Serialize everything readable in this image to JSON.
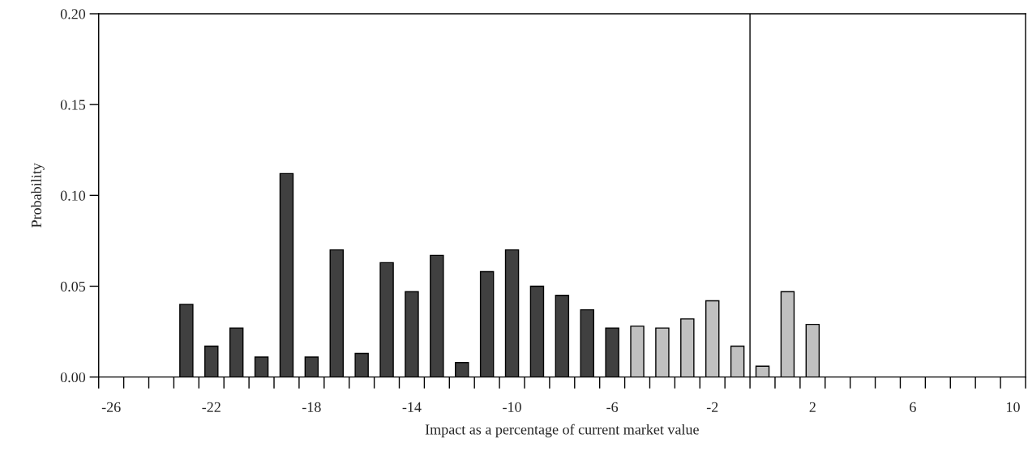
{
  "chart_data": {
    "type": "bar",
    "xlabel": "Impact as a percentage of current market value",
    "ylabel": "Probability",
    "x": [
      -26,
      -25,
      -24,
      -23,
      -22,
      -21,
      -20,
      -19,
      -18,
      -17,
      -16,
      -15,
      -14,
      -13,
      -12,
      -11,
      -10,
      -9,
      -8,
      -7,
      -6,
      -5,
      -4,
      -3,
      -2,
      -1,
      0,
      1,
      2,
      3,
      4,
      5,
      6,
      7,
      8,
      9,
      10
    ],
    "values": [
      0,
      0,
      0,
      0.04,
      0.017,
      0.027,
      0.011,
      0.112,
      0.011,
      0.07,
      0.013,
      0.063,
      0.047,
      0.067,
      0.008,
      0.058,
      0.07,
      0.05,
      0.045,
      0.037,
      0.027,
      0.028,
      0.027,
      0.032,
      0.042,
      0.017,
      0.006,
      0.047,
      0.029,
      0,
      0,
      0,
      0,
      0,
      0,
      0,
      0
    ],
    "colors": [
      "#000000",
      "#000000",
      "#000000",
      "#404040",
      "#404040",
      "#404040",
      "#404040",
      "#404040",
      "#404040",
      "#404040",
      "#404040",
      "#404040",
      "#404040",
      "#404040",
      "#404040",
      "#404040",
      "#404040",
      "#404040",
      "#404040",
      "#404040",
      "#404040",
      "#c0c0c0",
      "#c0c0c0",
      "#c0c0c0",
      "#c0c0c0",
      "#c0c0c0",
      "#c0c0c0",
      "#c0c0c0",
      "#c0c0c0",
      "#000000",
      "#000000",
      "#000000",
      "#000000",
      "#000000",
      "#000000",
      "#000000",
      "#000000"
    ],
    "xlim": [
      -26.5,
      10.5
    ],
    "xticks": [
      -26,
      -22,
      -18,
      -14,
      -10,
      -6,
      -2,
      2,
      6,
      10,
      {
        "value": -26.5,
        "label": null
      },
      {
        "value": -25.5,
        "label": null
      },
      {
        "value": -24.5,
        "label": null
      },
      {
        "value": -23.5,
        "label": null
      },
      {
        "value": -22.5,
        "label": null
      },
      {
        "value": -21.5,
        "label": null
      },
      {
        "value": -20.5,
        "label": null
      },
      {
        "value": -19.5,
        "label": null
      },
      {
        "value": -18.5,
        "label": null
      },
      {
        "value": -17.5,
        "label": null
      },
      {
        "value": -16.5,
        "label": null
      },
      {
        "value": -15.5,
        "label": null
      },
      {
        "value": -14.5,
        "label": null
      },
      {
        "value": -13.5,
        "label": null
      },
      {
        "value": -12.5,
        "label": null
      },
      {
        "value": -11.5,
        "label": null
      },
      {
        "value": -10.5,
        "label": null
      },
      {
        "value": -9.5,
        "label": null
      },
      {
        "value": -8.5,
        "label": null
      },
      {
        "value": -7.5,
        "label": null
      },
      {
        "value": -6.5,
        "label": null
      },
      {
        "value": -5.5,
        "label": null
      },
      {
        "value": -4.5,
        "label": null
      },
      {
        "value": -3.5,
        "label": null
      },
      {
        "value": -2.5,
        "label": null
      },
      {
        "value": -1.5,
        "label": null
      },
      {
        "value": -0.5,
        "label": null
      },
      {
        "value": 0.5,
        "label": null
      },
      {
        "value": 1.5,
        "label": null
      },
      {
        "value": 2.5,
        "label": null
      },
      {
        "value": 3.5,
        "label": null
      },
      {
        "value": 4.5,
        "label": null
      },
      {
        "value": 5.5,
        "label": null
      },
      {
        "value": 6.5,
        "label": null
      },
      {
        "value": 7.5,
        "label": null
      },
      {
        "value": 8.5,
        "label": null
      },
      {
        "value": 9.5,
        "label": null
      },
      {
        "value": 10.5,
        "label": null
      }
    ],
    "ylim": [
      0,
      0.2
    ],
    "yticks": [
      {
        "value": 0,
        "label": "0.00"
      },
      {
        "value": 0.05,
        "label": "0.05"
      },
      {
        "value": 0.1,
        "label": "0.10"
      },
      {
        "value": 0.15,
        "label": "0.15"
      },
      {
        "value": 0.2,
        "label": "0.20"
      }
    ],
    "ref_lines": [
      {
        "axis": "x",
        "value": -0.5,
        "color": "#000000"
      }
    ],
    "grid": false
  }
}
